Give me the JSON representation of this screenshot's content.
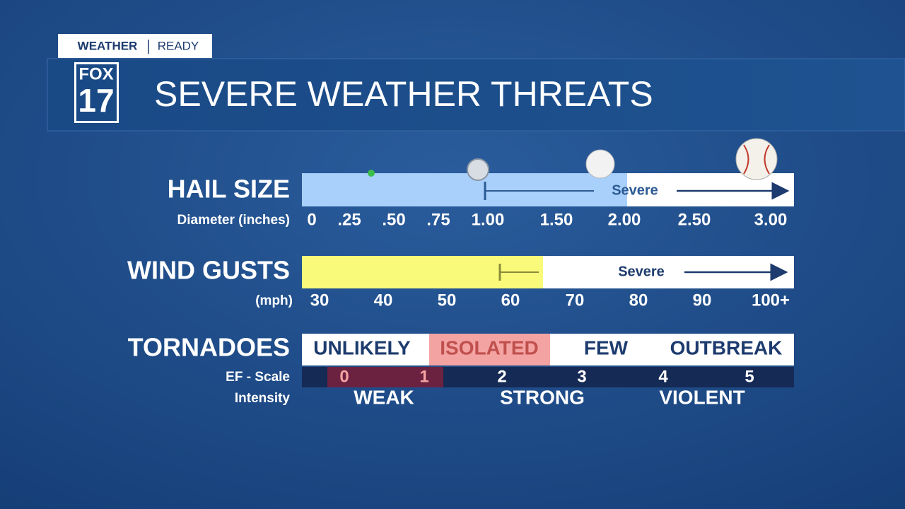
{
  "header": {
    "badge": [
      "WEATHER",
      "READY"
    ],
    "logo": [
      "FOX",
      "17"
    ],
    "title": "SEVERE WEATHER THREATS"
  },
  "hail": {
    "label": "HAIL SIZE",
    "sublabel": "Diameter (inches)",
    "severe_label": "Severe",
    "ticks": [
      "0",
      ".25",
      ".50",
      ".75",
      "1.00",
      "1.50",
      "2.00",
      "2.50",
      "3.00"
    ]
  },
  "wind": {
    "label": "WIND GUSTS",
    "sublabel": "(mph)",
    "severe_label": "Severe",
    "ticks": [
      "30",
      "40",
      "50",
      "60",
      "70",
      "80",
      "90",
      "100+"
    ]
  },
  "tornadoes": {
    "label": "TORNADOES",
    "categories": [
      "UNLIKELY",
      "ISOLATED",
      "FEW",
      "OUTBREAK"
    ],
    "ef_label": "EF - Scale",
    "ef_values": [
      "0",
      "1",
      "2",
      "3",
      "4",
      "5"
    ],
    "intensity_label": "Intensity",
    "intensity": [
      "WEAK",
      "STRONG",
      "VIOLENT"
    ]
  }
}
